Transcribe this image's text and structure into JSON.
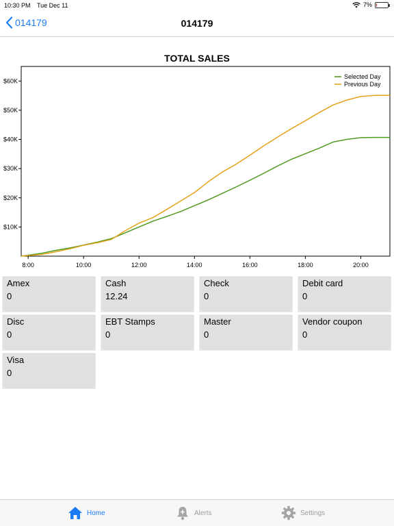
{
  "status_bar": {
    "time": "10:30 PM",
    "date": "Tue Dec 11",
    "battery_percent": "7%",
    "battery_level": 0.07
  },
  "nav": {
    "back_label": "014179",
    "title": "014179"
  },
  "colors": {
    "accent": "#1a7cf5",
    "selected_day": "#4f9a1f",
    "previous_day": "#e3a21a",
    "tile_bg": "#e0dfe1"
  },
  "chart_data": {
    "type": "line",
    "title": "TOTAL SALES",
    "xlabel": "",
    "ylabel": "",
    "xlim": [
      7.75,
      21.05
    ],
    "ylim": [
      0,
      65000
    ],
    "x_ticks": [
      8,
      10,
      12,
      14,
      16,
      18,
      20
    ],
    "x_tick_labels": [
      "8:00",
      "10:00",
      "12:00",
      "14:00",
      "16:00",
      "18:00",
      "20:00"
    ],
    "y_ticks": [
      10000,
      20000,
      30000,
      40000,
      50000,
      60000
    ],
    "y_tick_labels": [
      "$10K",
      "$20K",
      "$30K",
      "$40K",
      "$50K",
      "$60K"
    ],
    "legend_position": "top-right",
    "grid": false,
    "series": [
      {
        "name": "Selected Day",
        "color": "#4f9a1f",
        "x": [
          7.75,
          8.5,
          9,
          9.5,
          10,
          10.5,
          11,
          11.5,
          12,
          12.5,
          13,
          13.5,
          14,
          14.5,
          15,
          15.5,
          16,
          16.5,
          17,
          17.5,
          18,
          18.5,
          19,
          19.5,
          20,
          20.5,
          21.05
        ],
        "y": [
          0,
          1000,
          2000,
          2800,
          3800,
          4800,
          6000,
          8000,
          10000,
          12000,
          13600,
          15300,
          17300,
          19300,
          21500,
          23700,
          26000,
          28400,
          30900,
          33200,
          35100,
          37000,
          39100,
          40000,
          40600,
          40700,
          40700
        ]
      },
      {
        "name": "Previous Day",
        "color": "#e3a21a",
        "x": [
          7.75,
          8.5,
          9,
          9.5,
          10,
          10.5,
          11,
          11.5,
          12,
          12.5,
          13,
          13.5,
          14,
          14.5,
          15,
          15.5,
          16,
          16.5,
          17,
          17.5,
          18,
          18.5,
          19,
          19.5,
          20,
          20.5,
          21.05
        ],
        "y": [
          0,
          600,
          1500,
          2500,
          3700,
          4600,
          5700,
          8700,
          11300,
          13200,
          16000,
          18900,
          21800,
          25500,
          28800,
          31500,
          34600,
          37800,
          40800,
          43700,
          46400,
          49200,
          51800,
          53500,
          54700,
          55100,
          55100
        ]
      }
    ]
  },
  "tiles": [
    {
      "label": "Amex",
      "value": "0"
    },
    {
      "label": "Cash",
      "value": "12.24"
    },
    {
      "label": "Check",
      "value": "0"
    },
    {
      "label": "Debit card",
      "value": "0"
    },
    {
      "label": "Disc",
      "value": "0"
    },
    {
      "label": "EBT Stamps",
      "value": "0"
    },
    {
      "label": "Master",
      "value": "0"
    },
    {
      "label": "Vendor coupon",
      "value": "0"
    },
    {
      "label": "Visa",
      "value": "0"
    }
  ],
  "tabs": [
    {
      "label": "Home",
      "icon": "home-icon"
    },
    {
      "label": "Alerts",
      "icon": "bell-icon"
    },
    {
      "label": "Settings",
      "icon": "gear-icon"
    }
  ]
}
